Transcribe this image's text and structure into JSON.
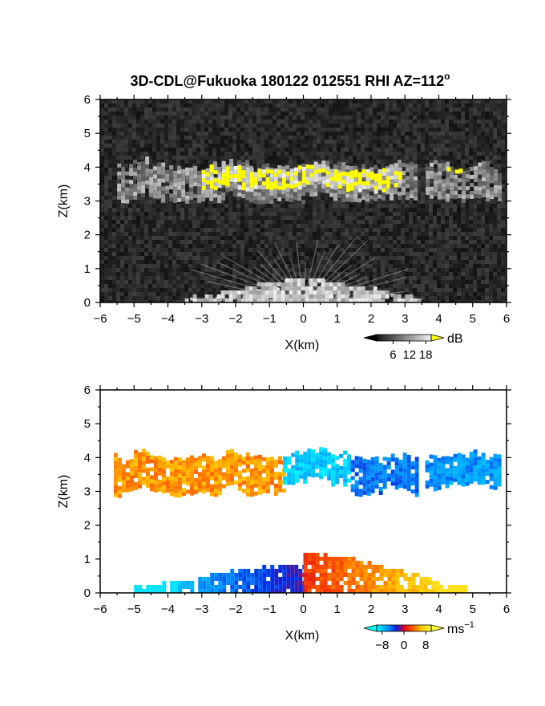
{
  "title": "3D-CDL@Fukuoka 180122 012551 RHI AZ=112",
  "title_superscript": "o",
  "chart_data": [
    {
      "type": "heatmap",
      "name": "reflectivity",
      "xlabel": "X(km)",
      "ylabel": "Z(km)",
      "xlim": [
        -6,
        6
      ],
      "ylim": [
        0,
        6
      ],
      "xticks": [
        "−6",
        "−5",
        "−4",
        "−3",
        "−2",
        "−1",
        "0",
        "1",
        "2",
        "3",
        "4",
        "5",
        "6"
      ],
      "yticks": [
        "0",
        "1",
        "2",
        "3",
        "4",
        "5",
        "6"
      ],
      "colorbar": {
        "unit": "dB",
        "ticks": [
          "6",
          "12",
          "18"
        ],
        "range": [
          0,
          20
        ],
        "high_color": "#ffff00"
      },
      "features": [
        {
          "kind": "cloud_layer",
          "x_range": [
            -5.5,
            5.8
          ],
          "z_range": [
            2.9,
            4.1
          ],
          "gaps_x": [
            [
              3.3,
              3.6
            ]
          ]
        },
        {
          "kind": "strong_echo",
          "x_range": [
            -3.0,
            2.8
          ],
          "z_range": [
            3.2,
            4.0
          ]
        },
        {
          "kind": "strong_echo",
          "x_range": [
            4.0,
            4.6
          ],
          "z_range": [
            3.8,
            4.0
          ]
        },
        {
          "kind": "ground_clutter",
          "x_range": [
            -3.5,
            3.5
          ],
          "z_range": [
            0,
            0.6
          ]
        }
      ]
    },
    {
      "type": "heatmap",
      "name": "doppler_velocity",
      "xlabel": "X(km)",
      "ylabel": "Z(km)",
      "xlim": [
        -6,
        6
      ],
      "ylim": [
        0,
        6
      ],
      "xticks": [
        "−6",
        "−5",
        "−4",
        "−3",
        "−2",
        "−1",
        "0",
        "1",
        "2",
        "3",
        "4",
        "5",
        "6"
      ],
      "yticks": [
        "0",
        "1",
        "2",
        "3",
        "4",
        "5",
        "6"
      ],
      "colorbar": {
        "unit": "ms",
        "unit_superscript": "−1",
        "ticks": [
          "−8",
          "0",
          "8"
        ],
        "range": [
          -10,
          10
        ]
      },
      "features": [
        {
          "kind": "cloud_layer",
          "x_range": [
            -5.6,
            -0.6
          ],
          "z_range": [
            2.8,
            4.1
          ],
          "velocity": 5
        },
        {
          "kind": "cloud_layer",
          "x_range": [
            -0.6,
            1.4
          ],
          "z_range": [
            3.1,
            4.2
          ],
          "velocity": -8
        },
        {
          "kind": "cloud_layer",
          "x_range": [
            1.4,
            3.3
          ],
          "z_range": [
            2.8,
            4.0
          ],
          "velocity": -5
        },
        {
          "kind": "cloud_layer",
          "x_range": [
            3.6,
            5.8
          ],
          "z_range": [
            3.0,
            4.1
          ],
          "velocity": -6
        },
        {
          "kind": "boundary_layer",
          "x_range": [
            -5.0,
            0.0
          ],
          "z_range": [
            0,
            0.8
          ],
          "velocity": -6
        },
        {
          "kind": "boundary_layer",
          "x_range": [
            0.0,
            4.8
          ],
          "z_range": [
            0,
            1.1
          ],
          "velocity": 4
        }
      ]
    }
  ]
}
